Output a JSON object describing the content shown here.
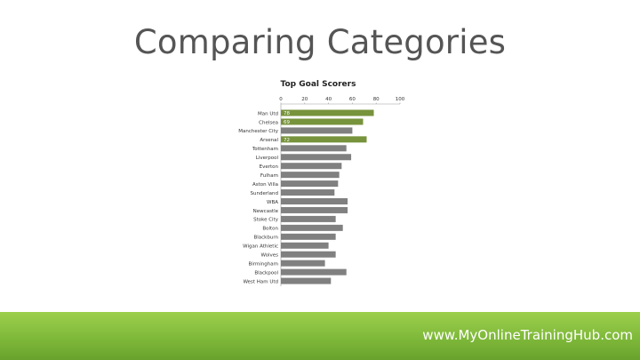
{
  "slide": {
    "title": "Comparing Categories",
    "footer_url": "www.MyOnlineTrainingHub.com"
  },
  "colors": {
    "highlight": "#77933c",
    "default_bar": "#808080",
    "footer": "#7fb93a"
  },
  "chart_data": {
    "type": "bar",
    "orientation": "horizontal",
    "title": "Top Goal Scorers",
    "xlim": [
      0,
      100
    ],
    "x_ticks": [
      0,
      20,
      40,
      60,
      80,
      100
    ],
    "grid": false,
    "categories": [
      "Man Utd",
      "Chelsea",
      "Manchester City",
      "Arsenal",
      "Tottenham",
      "Liverpool",
      "Everton",
      "Fulham",
      "Aston Villa",
      "Sunderland",
      "WBA",
      "Newcastle",
      "Stoke City",
      "Bolton",
      "Blackburn",
      "Wigan Athletic",
      "Wolves",
      "Birmingham",
      "Blackpool",
      "West Ham Utd"
    ],
    "values": [
      78,
      69,
      60,
      72,
      55,
      59,
      51,
      49,
      48,
      45,
      56,
      56,
      46,
      52,
      46,
      40,
      46,
      37,
      55,
      42
    ],
    "data_labels": [
      "78",
      "69",
      "",
      "72",
      "",
      "",
      "",
      "",
      "",
      "",
      "",
      "",
      "",
      "",
      "",
      "",
      "",
      "",
      "",
      ""
    ],
    "highlighted": [
      "Man Utd",
      "Chelsea",
      "Arsenal"
    ]
  }
}
